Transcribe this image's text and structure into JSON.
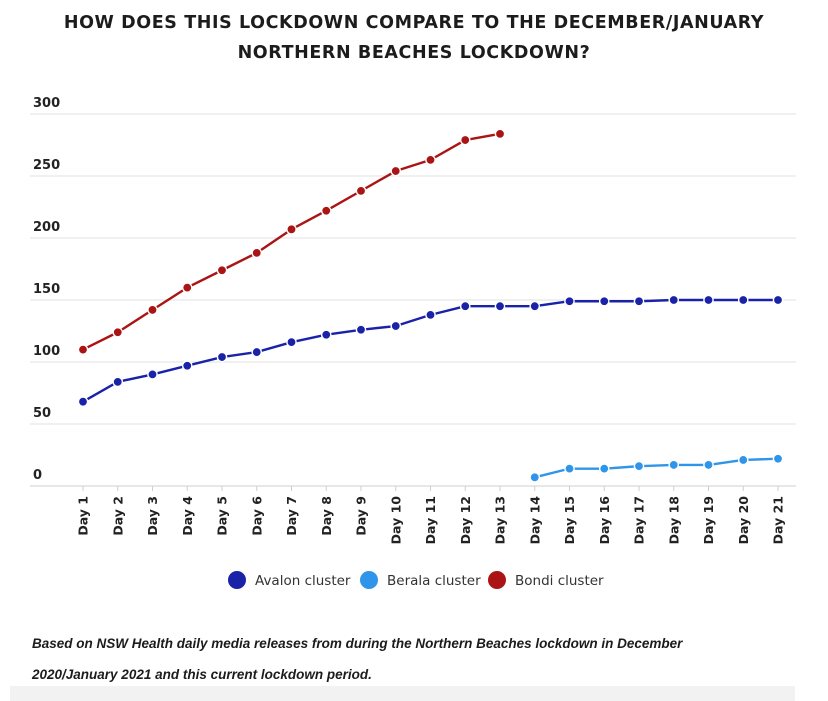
{
  "chart_data": {
    "type": "line",
    "title_line1": "HOW DOES THIS LOCKDOWN COMPARE TO THE DECEMBER/JANUARY",
    "title_line2": "NORTHERN BEACHES LOCKDOWN?",
    "xlabel": "",
    "ylabel": "",
    "categories": [
      "Day 1",
      "Day 2",
      "Day 3",
      "Day 4",
      "Day 5",
      "Day 6",
      "Day 7",
      "Day 8",
      "Day 9",
      "Day 10",
      "Day 11",
      "Day 12",
      "Day 13",
      "Day 14",
      "Day 15",
      "Day 16",
      "Day 17",
      "Day 18",
      "Day 19",
      "Day 20",
      "Day 21"
    ],
    "y_ticks": [
      0,
      50,
      100,
      150,
      200,
      250,
      300
    ],
    "ylim": [
      0,
      300
    ],
    "grid": true,
    "legend_position": "bottom-center",
    "series": [
      {
        "name": "Avalon cluster",
        "color": "#1a22a8",
        "values": [
          68,
          84,
          90,
          97,
          104,
          108,
          116,
          122,
          126,
          129,
          138,
          145,
          145,
          145,
          149,
          149,
          149,
          150,
          150,
          150,
          150
        ]
      },
      {
        "name": "Berala cluster",
        "color": "#2f95ea",
        "values": [
          null,
          null,
          null,
          null,
          null,
          null,
          null,
          null,
          null,
          null,
          null,
          null,
          null,
          7,
          14,
          14,
          16,
          17,
          17,
          21,
          22
        ]
      },
      {
        "name": "Bondi cluster",
        "color": "#ab1414",
        "values": [
          110,
          124,
          142,
          160,
          174,
          188,
          207,
          222,
          238,
          254,
          263,
          279,
          284,
          null,
          null,
          null,
          null,
          null,
          null,
          null,
          null
        ]
      }
    ]
  },
  "footnote_line1": "Based on NSW Health daily media releases from during the Northern Beaches lockdown in December",
  "footnote_line2": "2020/January 2021 and this current lockdown period."
}
